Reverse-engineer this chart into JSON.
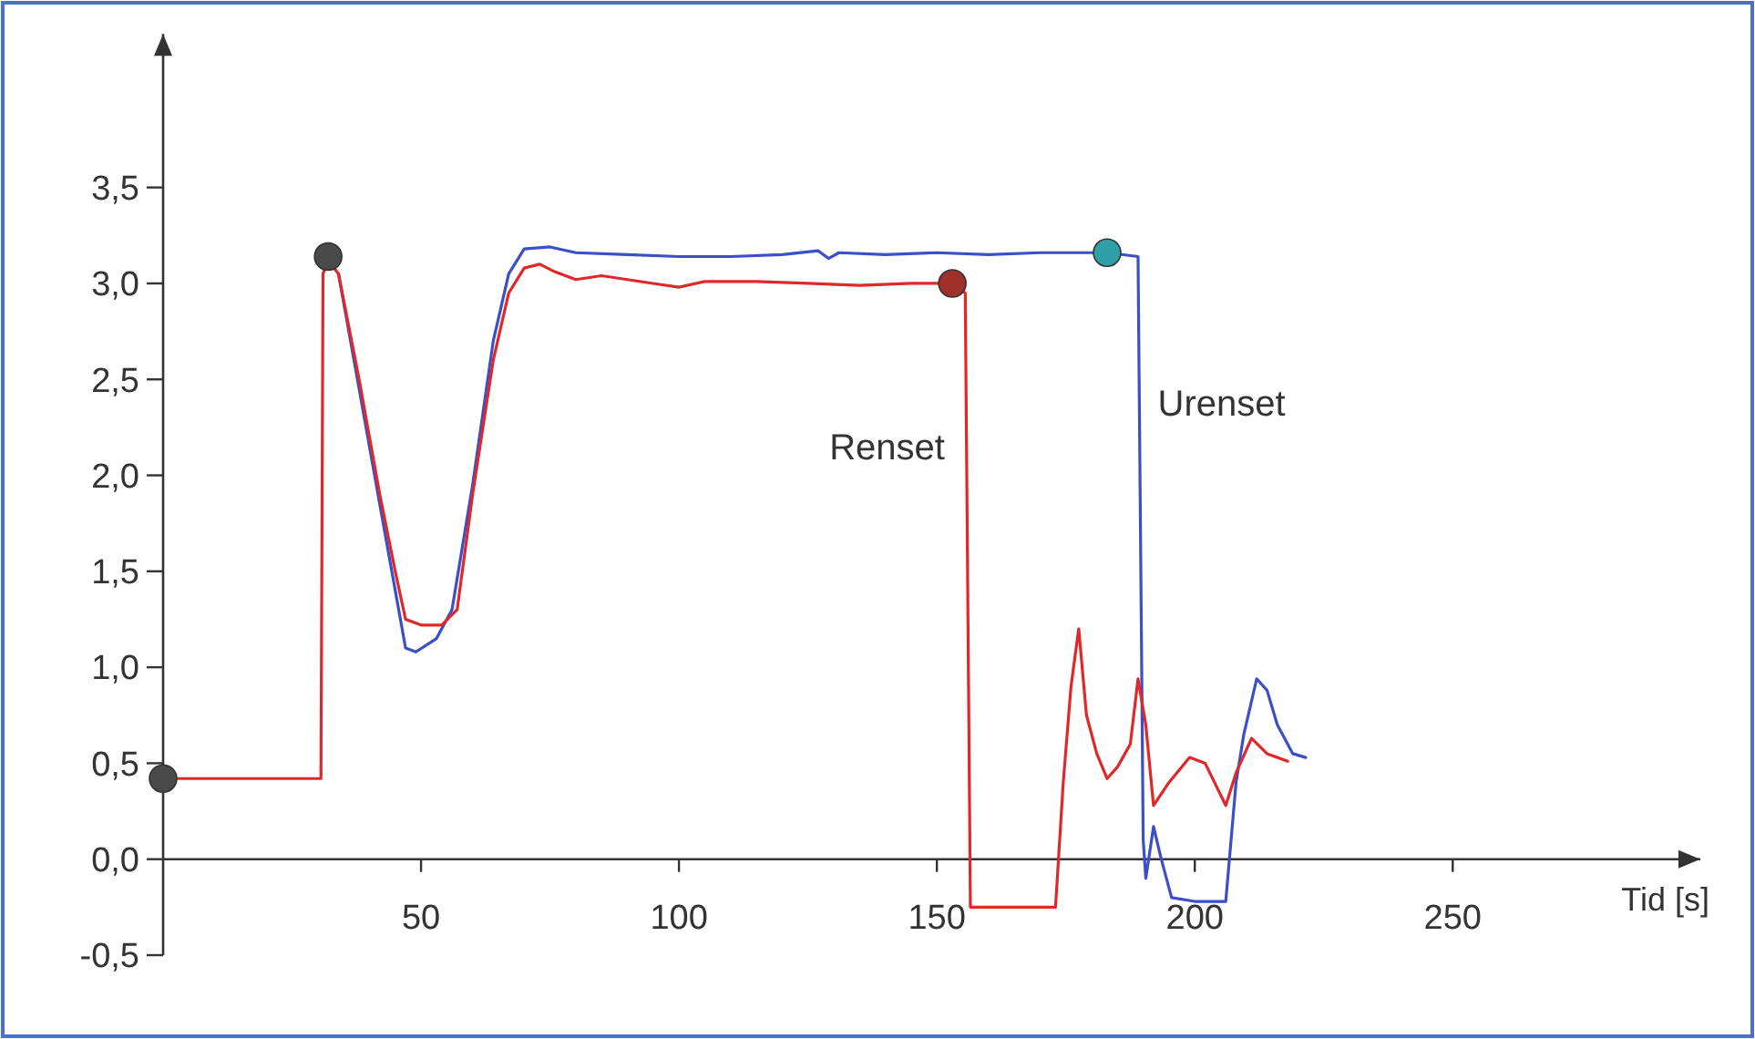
{
  "chart_data": {
    "type": "line",
    "xlabel": "Tid [s]",
    "xlim": [
      0,
      298
    ],
    "ylim": [
      -0.5,
      4.3
    ],
    "xticks": [
      50,
      100,
      150,
      200,
      250
    ],
    "yticks": [
      {
        "value": -0.5,
        "label": "-0,5"
      },
      {
        "value": 0,
        "label": "0,0"
      },
      {
        "value": 0.5,
        "label": "0,5"
      },
      {
        "value": 1,
        "label": "1,0"
      },
      {
        "value": 1.5,
        "label": "1,5"
      },
      {
        "value": 2,
        "label": "2,0"
      },
      {
        "value": 2.5,
        "label": "2,5"
      },
      {
        "value": 3,
        "label": "3,0"
      },
      {
        "value": 3.5,
        "label": "3,5"
      }
    ],
    "grid": false,
    "legend": false,
    "line_style": "solid",
    "marker": "none",
    "series": [
      {
        "name": "Urenset",
        "color": "#3a4fc8",
        "x": [
          34,
          38,
          42,
          45,
          47,
          49,
          53,
          56,
          60,
          64,
          67,
          70,
          75,
          80,
          90,
          100,
          110,
          120,
          127,
          129,
          131,
          140,
          150,
          160,
          170,
          183,
          189,
          190,
          190.5,
          192,
          193.5,
          195.5,
          200,
          206,
          208,
          209.5,
          212,
          214,
          216,
          219,
          221.5
        ],
        "values": [
          3.05,
          2.45,
          1.85,
          1.4,
          1.1,
          1.08,
          1.15,
          1.3,
          1.95,
          2.7,
          3.05,
          3.18,
          3.19,
          3.16,
          3.15,
          3.14,
          3.14,
          3.15,
          3.17,
          3.13,
          3.16,
          3.15,
          3.16,
          3.15,
          3.16,
          3.16,
          3.14,
          0.1,
          -0.1,
          0.17,
          0.0,
          -0.2,
          -0.22,
          -0.22,
          0.4,
          0.65,
          0.94,
          0.88,
          0.7,
          0.55,
          0.53
        ]
      },
      {
        "name": "Renset",
        "color": "#e0282a",
        "x": [
          0,
          30.6,
          31,
          32,
          34,
          38,
          42,
          45,
          47,
          50,
          54,
          57,
          60,
          64,
          67,
          70,
          73,
          76,
          80,
          85,
          90,
          95,
          100,
          105,
          115,
          125,
          135,
          145,
          153,
          155.5,
          156.5,
          173,
          174.5,
          176,
          177.5,
          179,
          181,
          183,
          185,
          187.5,
          189,
          190.5,
          192,
          195,
          199,
          202,
          206,
          208,
          211,
          214,
          218
        ],
        "values": [
          0.42,
          0.42,
          3.05,
          3.12,
          3.05,
          2.5,
          1.9,
          1.5,
          1.25,
          1.22,
          1.22,
          1.3,
          1.9,
          2.6,
          2.95,
          3.08,
          3.1,
          3.06,
          3.02,
          3.04,
          3.02,
          3.0,
          2.98,
          3.01,
          3.01,
          3.0,
          2.99,
          3.0,
          3.0,
          2.95,
          -0.25,
          -0.25,
          0.4,
          0.9,
          1.2,
          0.75,
          0.55,
          0.42,
          0.48,
          0.6,
          0.94,
          0.7,
          0.28,
          0.4,
          0.53,
          0.5,
          0.28,
          0.45,
          0.63,
          0.55,
          0.51
        ]
      },
      {
        "type": "scatter",
        "marker": "circle",
        "x": [
          0,
          32,
          153,
          183
        ],
        "values": [
          0.42,
          3.14,
          3.0,
          3.16
        ],
        "colors": [
          "#4a4a4a",
          "#4a4a4a",
          "#a0302a",
          "#30a0a8"
        ]
      }
    ]
  }
}
